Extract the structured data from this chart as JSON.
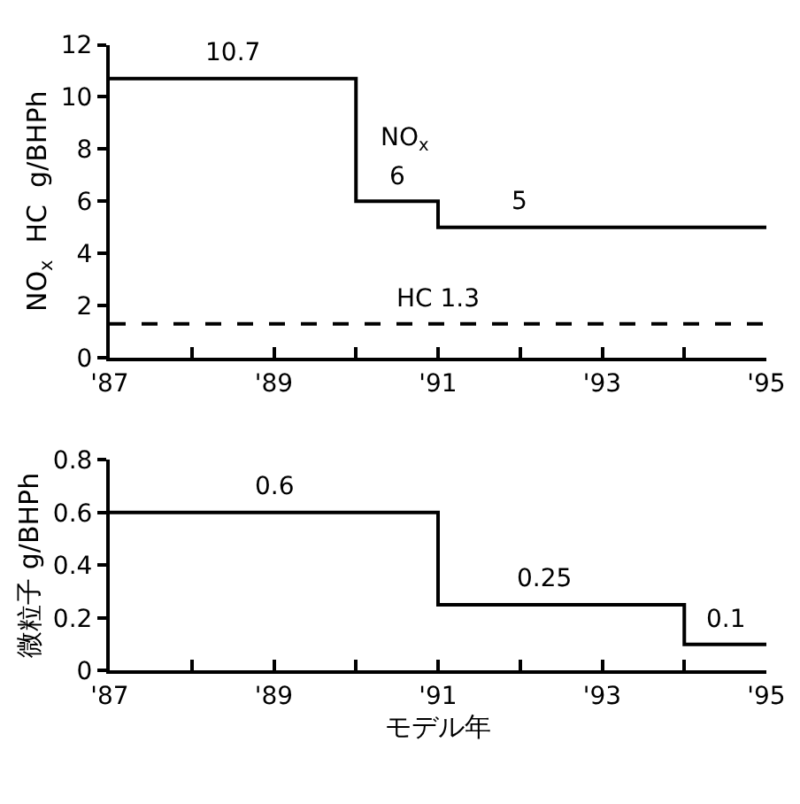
{
  "chart_data": [
    {
      "type": "step",
      "ylabel": "NO$_{x}$  HC  g/BHPh",
      "xlim": [
        1987,
        1995
      ],
      "xticks": [
        {
          "value": 1987,
          "label": "'87"
        },
        {
          "value": 1988,
          "label": null
        },
        {
          "value": 1989,
          "label": "'89"
        },
        {
          "value": 1990,
          "label": null
        },
        {
          "value": 1991,
          "label": "'91"
        },
        {
          "value": 1992,
          "label": null
        },
        {
          "value": 1993,
          "label": "'93"
        },
        {
          "value": 1994,
          "label": null
        },
        {
          "value": 1995,
          "label": "'95"
        }
      ],
      "ylim": [
        0,
        12
      ],
      "yticks": [
        0,
        2,
        4,
        6,
        8,
        10,
        12
      ],
      "series": [
        {
          "name": "NO$_{x}$",
          "color": "#000000",
          "line_style": "solid",
          "x": [
            1987,
            1990,
            1991,
            1995
          ],
          "values": [
            10.7,
            6,
            5,
            5
          ]
        },
        {
          "color": "#000000",
          "line_style": "dashed",
          "x": [
            1987,
            1995
          ],
          "values": [
            1.3,
            1.3
          ]
        }
      ],
      "annotations": [
        {
          "text": "10.7",
          "x": 1988.5,
          "y": 10.7
        },
        {
          "text": "6",
          "x": 1990.5,
          "y": 6
        },
        {
          "text": "5",
          "x": 1992,
          "y": 5
        },
        {
          "text": "HC 1.3",
          "x": 1991,
          "y": 1.3
        }
      ]
    },
    {
      "type": "step",
      "ylabel": "微粒子 g/BHPh",
      "xlabel": "モデル年",
      "xlim": [
        1987,
        1995
      ],
      "xticks": [
        {
          "value": 1987,
          "label": "'87"
        },
        {
          "value": 1988,
          "label": null
        },
        {
          "value": 1989,
          "label": "'89"
        },
        {
          "value": 1990,
          "label": null
        },
        {
          "value": 1991,
          "label": "'91"
        },
        {
          "value": 1992,
          "label": null
        },
        {
          "value": 1993,
          "label": "'93"
        },
        {
          "value": 1994,
          "label": null
        },
        {
          "value": 1995,
          "label": "'95"
        }
      ],
      "ylim": [
        0,
        0.8
      ],
      "yticks": [
        0,
        0.2,
        0.4,
        0.6,
        0.8
      ],
      "series": [
        {
          "color": "#000000",
          "line_style": "solid",
          "x": [
            1987,
            1991,
            1994,
            1995
          ],
          "values": [
            0.6,
            0.25,
            0.1,
            0.1
          ]
        }
      ],
      "annotations": [
        {
          "text": "0.6",
          "x": 1989,
          "y": 0.6
        },
        {
          "text": "0.25",
          "x": 1992.3,
          "y": 0.25
        },
        {
          "text": "0.1",
          "x": 1994.5,
          "y": 0.1
        }
      ]
    }
  ]
}
